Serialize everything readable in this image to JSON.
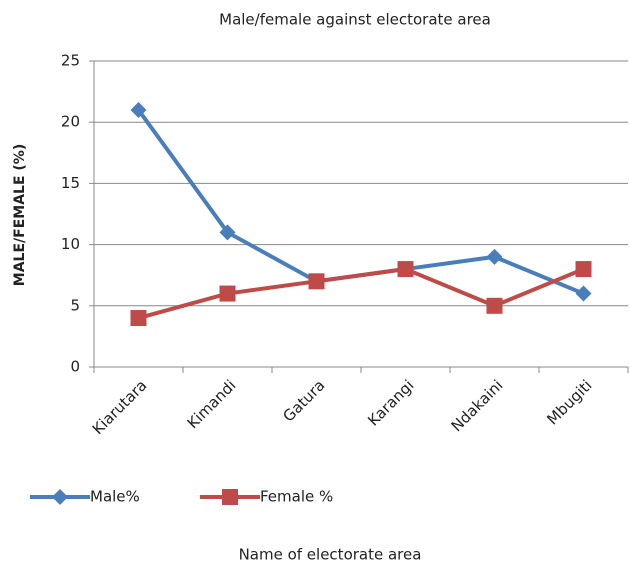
{
  "chart_data": {
    "type": "line",
    "title": "Male/female against  electorate area",
    "x_label": "Name of electorate area",
    "y_label": "MALE/FEMALE  (%)",
    "categories": [
      "Kiarutara",
      "Kimandi",
      "Gatura",
      "Karangi",
      "Ndakaini",
      "Mbugiti"
    ],
    "series": [
      {
        "name": "Male%",
        "color": "#4a7ebb",
        "marker": "diamond",
        "values": [
          21,
          11,
          7,
          8,
          9,
          6
        ]
      },
      {
        "name": "Female %",
        "color": "#be4b48",
        "marker": "square",
        "values": [
          4,
          6,
          7,
          8,
          5,
          8
        ]
      }
    ],
    "ylim": [
      0,
      25
    ],
    "yticks": [
      0,
      5,
      10,
      15,
      20,
      25
    ],
    "grid": true,
    "legend": "bottom"
  }
}
